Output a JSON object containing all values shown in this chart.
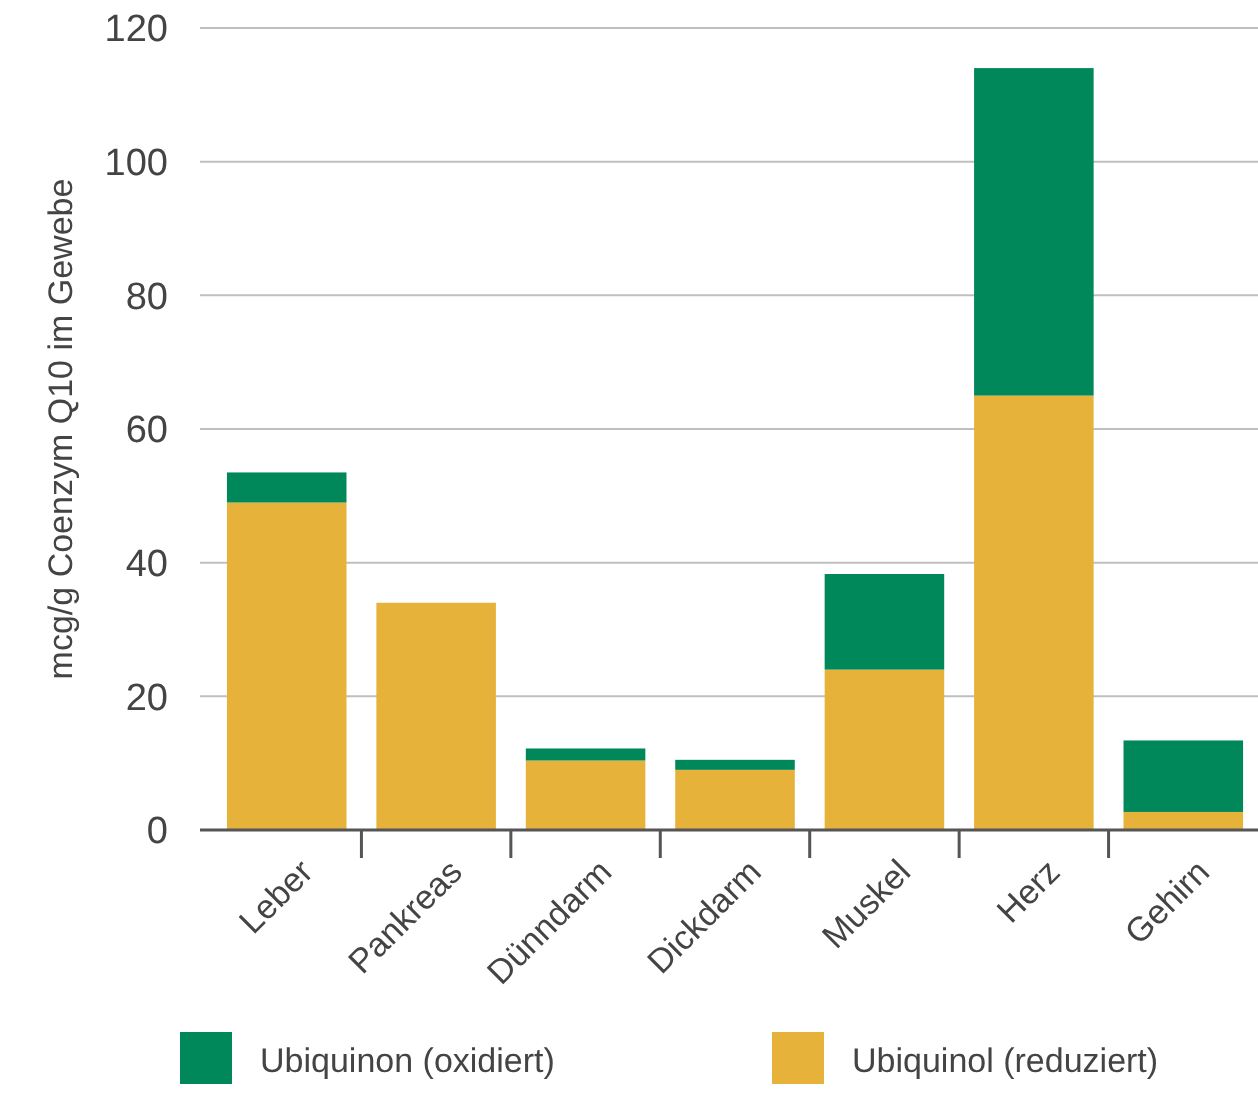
{
  "chart_data": {
    "type": "bar",
    "stacked": true,
    "ylabel": "mcg/g Coenzym Q10 im Gewebe",
    "categories": [
      "Leber",
      "Pankreas",
      "Dünndarm",
      "Dickdarm",
      "Muskel",
      "Herz",
      "Gehirn"
    ],
    "series": [
      {
        "name": "Ubiquinol (reduziert)",
        "color": "#e6b23a",
        "values": [
          49,
          34,
          10.4,
          9,
          24,
          65,
          2.7
        ]
      },
      {
        "name": "Ubiquinon (oxidiert)",
        "color": "#00875a",
        "values": [
          4.5,
          0,
          1.8,
          1.5,
          14.3,
          49,
          10.7
        ]
      }
    ],
    "ylim": [
      0,
      120
    ],
    "yticks": [
      0,
      20,
      40,
      60,
      80,
      100,
      120
    ],
    "grid": "y",
    "legend": "bottom"
  }
}
